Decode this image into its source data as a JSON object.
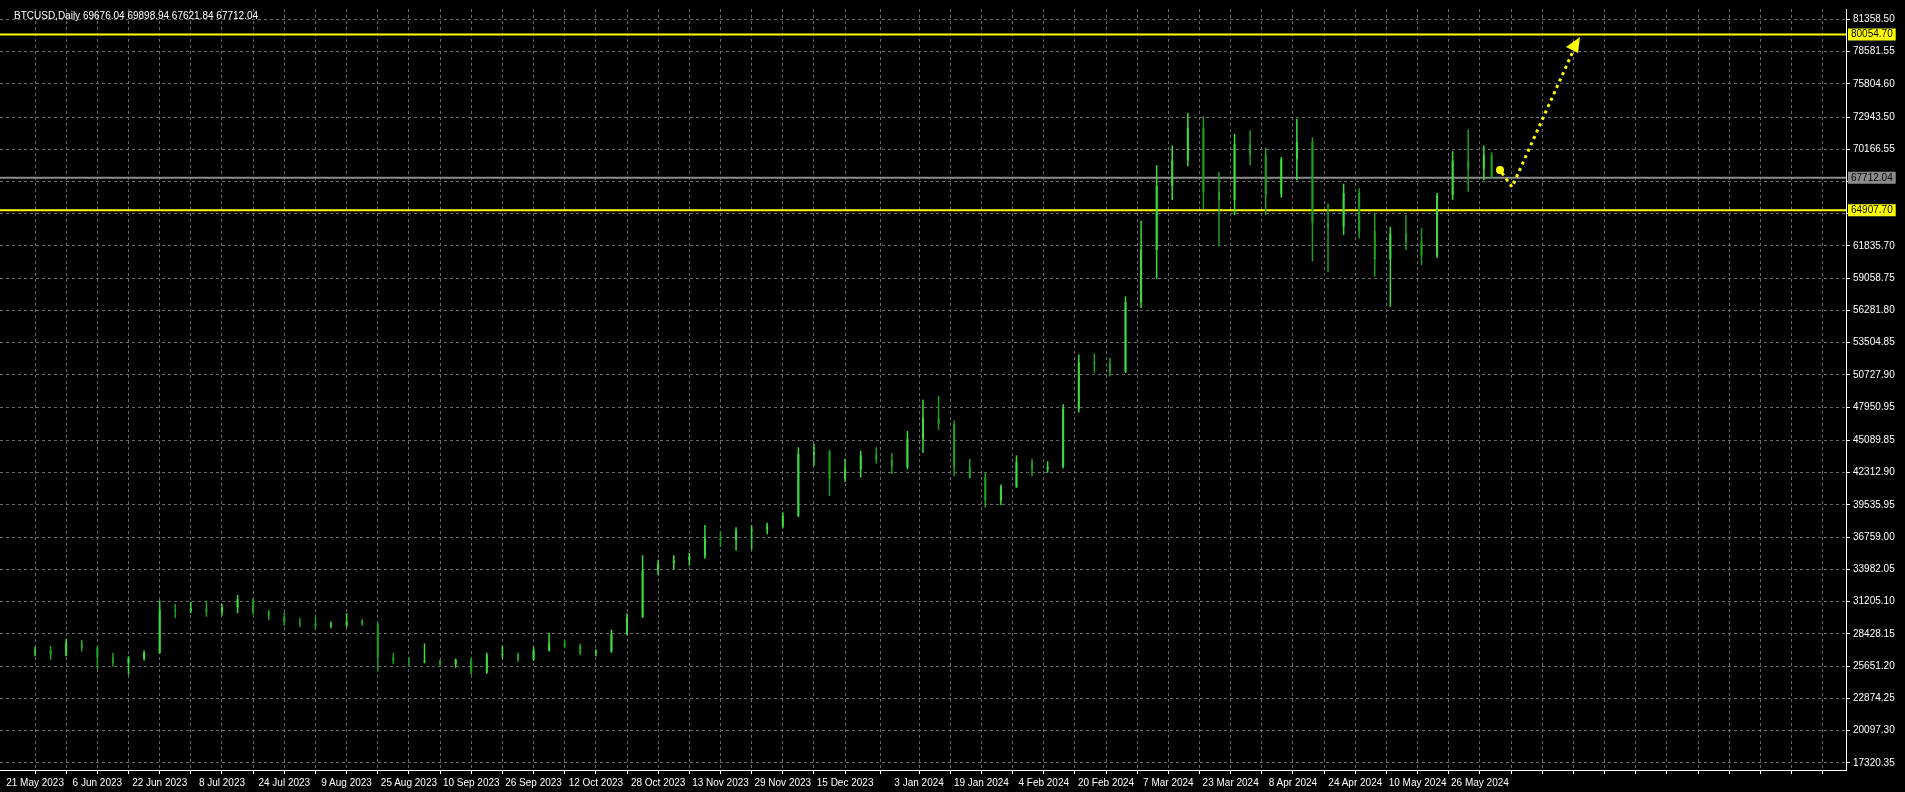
{
  "chart_data": {
    "type": "candlestick",
    "title": "BTCUSD,Daily 69676.04 69898.94 67621.84 67712.04",
    "colors": [
      "#3ddc3d",
      "#1f9e1f",
      "#3ddc3d",
      "#1f9e1f",
      "#1f9e1f",
      "#1f9e1f",
      "#3ddc3d",
      "#3ddc3d",
      "#3ddc3d",
      "#1f9e1f",
      "#3ddc3d",
      "#1f9e1f",
      "#3ddc3d",
      "#3ddc3d",
      "#1f9e1f",
      "#1f9e1f",
      "#1f9e1f",
      "#1f9e1f",
      "#1f9e1f",
      "#3ddc3d",
      "#3ddc3d",
      "#1f9e1f",
      "#1f9e1f",
      "#1f9e1f",
      "#1f9e1f",
      "#3ddc3d",
      "#1f9e1f",
      "#3ddc3d",
      "#1f9e1f",
      "#3ddc3d",
      "#3ddc3d",
      "#1f9e1f",
      "#3ddc3d",
      "#3ddc3d",
      "#1f9e1f",
      "#1f9e1f",
      "#3ddc3d",
      "#3ddc3d",
      "#3ddc3d",
      "#3ddc3d",
      "#3ddc3d",
      "#3ddc3d",
      "#3ddc3d",
      "#3ddc3d",
      "#1f9e1f",
      "#3ddc3d",
      "#3ddc3d",
      "#3ddc3d",
      "#3ddc3d",
      "#3ddc3d",
      "#3ddc3d",
      "#1f9e1f",
      "#3ddc3d",
      "#3ddc3d",
      "#1f9e1f",
      "#1f9e1f",
      "#3ddc3d",
      "#3ddc3d",
      "#1f9e1f",
      "#1f9e1f",
      "#1f9e1f",
      "#1f9e1f",
      "#3ddc3d",
      "#3ddc3d",
      "#1f9e1f",
      "#3ddc3d",
      "#3ddc3d",
      "#3ddc3d",
      "#1f9e1f",
      "#1f9e1f",
      "#3ddc3d",
      "#3ddc3d",
      "#3ddc3d",
      "#3ddc3d",
      "#3ddc3d",
      "#1f9e1f",
      "#1f9e1f",
      "#3ddc3d",
      "#1f9e1f",
      "#1f9e1f",
      "#3ddc3d",
      "#3ddc3d",
      "#1f9e1f",
      "#1f9e1f",
      "#3ddc3d",
      "#1f9e1f",
      "#1f9e1f",
      "#3ddc3d",
      "#1f9e1f",
      "#1f9e1f",
      "#3ddc3d",
      "#3ddc3d",
      "#1f9e1f",
      "#3ddc3d",
      "#1f9e1f"
    ],
    "x": [
      "2023-05-21",
      "2023-05-25",
      "2023-05-29",
      "2023-06-02",
      "2023-06-06",
      "2023-06-10",
      "2023-06-14",
      "2023-06-18",
      "2023-06-22",
      "2023-06-26",
      "2023-06-30",
      "2023-07-04",
      "2023-07-08",
      "2023-07-12",
      "2023-07-16",
      "2023-07-20",
      "2023-07-24",
      "2023-07-28",
      "2023-08-01",
      "2023-08-05",
      "2023-08-09",
      "2023-08-13",
      "2023-08-17",
      "2023-08-21",
      "2023-08-25",
      "2023-08-29",
      "2023-09-02",
      "2023-09-06",
      "2023-09-10",
      "2023-09-14",
      "2023-09-18",
      "2023-09-22",
      "2023-09-26",
      "2023-09-30",
      "2023-10-04",
      "2023-10-08",
      "2023-10-12",
      "2023-10-16",
      "2023-10-20",
      "2023-10-24",
      "2023-10-28",
      "2023-11-01",
      "2023-11-05",
      "2023-11-09",
      "2023-11-13",
      "2023-11-17",
      "2023-11-21",
      "2023-11-25",
      "2023-11-29",
      "2023-12-03",
      "2023-12-07",
      "2023-12-11",
      "2023-12-15",
      "2023-12-19",
      "2023-12-23",
      "2023-12-27",
      "2023-12-31",
      "2024-01-04",
      "2024-01-08",
      "2024-01-12",
      "2024-01-16",
      "2024-01-20",
      "2024-01-24",
      "2024-01-28",
      "2024-02-01",
      "2024-02-05",
      "2024-02-09",
      "2024-02-13",
      "2024-02-17",
      "2024-02-21",
      "2024-02-25",
      "2024-02-29",
      "2024-03-04",
      "2024-03-08",
      "2024-03-12",
      "2024-03-16",
      "2024-03-20",
      "2024-03-24",
      "2024-03-28",
      "2024-04-01",
      "2024-04-05",
      "2024-04-09",
      "2024-04-13",
      "2024-04-17",
      "2024-04-21",
      "2024-04-25",
      "2024-04-29",
      "2024-05-03",
      "2024-05-07",
      "2024-05-11",
      "2024-05-15",
      "2024-05-19",
      "2024-05-23",
      "2024-05-27",
      "2024-05-29"
    ],
    "ohlc": [
      [
        26900,
        27300,
        26500,
        27000
      ],
      [
        27000,
        27400,
        26200,
        26600
      ],
      [
        26600,
        28000,
        26500,
        27700
      ],
      [
        27700,
        27900,
        26900,
        27200
      ],
      [
        27200,
        27400,
        25400,
        26400
      ],
      [
        26400,
        26800,
        25600,
        25900
      ],
      [
        25900,
        26500,
        24900,
        26300
      ],
      [
        26300,
        27000,
        26100,
        26800
      ],
      [
        26800,
        31300,
        26700,
        30500
      ],
      [
        30500,
        31000,
        29800,
        30400
      ],
      [
        30400,
        31200,
        30200,
        30600
      ],
      [
        30600,
        31300,
        29900,
        30300
      ],
      [
        30300,
        31000,
        30000,
        30700
      ],
      [
        30700,
        31800,
        30200,
        31400
      ],
      [
        31400,
        31500,
        30100,
        30300
      ],
      [
        30300,
        30500,
        29600,
        29900
      ],
      [
        29900,
        30300,
        29100,
        29400
      ],
      [
        29400,
        29800,
        29000,
        29300
      ],
      [
        29300,
        29900,
        28800,
        29100
      ],
      [
        29100,
        29500,
        28900,
        29200
      ],
      [
        29200,
        30200,
        29000,
        29500
      ],
      [
        29500,
        29700,
        29100,
        29300
      ],
      [
        29300,
        29400,
        25200,
        26400
      ],
      [
        26400,
        26800,
        25800,
        26100
      ],
      [
        26100,
        26400,
        25700,
        26000
      ],
      [
        26000,
        27600,
        25900,
        26100
      ],
      [
        26100,
        26200,
        25600,
        25800
      ],
      [
        25800,
        26300,
        25500,
        26200
      ],
      [
        26200,
        26400,
        24900,
        25100
      ],
      [
        25100,
        26800,
        25000,
        26600
      ],
      [
        26600,
        27400,
        26300,
        26700
      ],
      [
        26700,
        26800,
        26000,
        26200
      ],
      [
        26200,
        27300,
        26100,
        27000
      ],
      [
        27000,
        28500,
        26900,
        27600
      ],
      [
        27600,
        27900,
        27200,
        27400
      ],
      [
        27400,
        27600,
        26600,
        26800
      ],
      [
        26800,
        27100,
        26500,
        26900
      ],
      [
        26900,
        28800,
        26800,
        28400
      ],
      [
        28400,
        30200,
        28300,
        29900
      ],
      [
        29900,
        35200,
        29800,
        33900
      ],
      [
        33900,
        34800,
        33500,
        34500
      ],
      [
        34500,
        35200,
        34000,
        34800
      ],
      [
        34800,
        35400,
        34300,
        35100
      ],
      [
        35100,
        37800,
        34900,
        36700
      ],
      [
        36700,
        37300,
        35900,
        36500
      ],
      [
        36500,
        37600,
        35600,
        37300
      ],
      [
        37300,
        37800,
        35700,
        37400
      ],
      [
        37400,
        38000,
        37000,
        37700
      ],
      [
        37700,
        38900,
        37500,
        38600
      ],
      [
        38600,
        44500,
        38500,
        43900
      ],
      [
        43900,
        44800,
        42900,
        44100
      ],
      [
        44100,
        44300,
        40300,
        41800
      ],
      [
        41800,
        43500,
        41500,
        42600
      ],
      [
        42600,
        44200,
        41900,
        43800
      ],
      [
        43800,
        44500,
        43100,
        43400
      ],
      [
        43400,
        44000,
        42200,
        42800
      ],
      [
        42800,
        45900,
        42600,
        45200
      ],
      [
        45200,
        48600,
        44000,
        47000
      ],
      [
        47000,
        48900,
        46000,
        46500
      ],
      [
        46500,
        46800,
        42000,
        42800
      ],
      [
        42800,
        43500,
        41800,
        41900
      ],
      [
        41900,
        42300,
        39300,
        39900
      ],
      [
        39900,
        41300,
        39500,
        41100
      ],
      [
        41100,
        43800,
        41000,
        43200
      ],
      [
        43200,
        43500,
        42000,
        42600
      ],
      [
        42600,
        43300,
        42300,
        42800
      ],
      [
        42800,
        48200,
        42700,
        47800
      ],
      [
        47800,
        52500,
        47500,
        51800
      ],
      [
        51800,
        52600,
        50900,
        51700
      ],
      [
        51700,
        52200,
        50600,
        51000
      ],
      [
        51000,
        57500,
        50900,
        57000
      ],
      [
        57000,
        64000,
        56500,
        61500
      ],
      [
        61500,
        68800,
        59000,
        67000
      ],
      [
        67000,
        70500,
        65800,
        69200
      ],
      [
        69200,
        73300,
        68700,
        72000
      ],
      [
        72000,
        73000,
        65000,
        66500
      ],
      [
        66500,
        68200,
        61800,
        65800
      ],
      [
        65800,
        71500,
        64500,
        70600
      ],
      [
        70600,
        71800,
        68800,
        69700
      ],
      [
        69700,
        70300,
        64500,
        66300
      ],
      [
        66300,
        69500,
        66000,
        69300
      ],
      [
        69300,
        72800,
        67500,
        70800
      ],
      [
        70800,
        71200,
        60500,
        63800
      ],
      [
        63800,
        65500,
        59600,
        63500
      ],
      [
        63500,
        67200,
        62800,
        66400
      ],
      [
        66400,
        66800,
        62500,
        63100
      ],
      [
        63100,
        64700,
        59200,
        60700
      ],
      [
        60700,
        63500,
        56600,
        62900
      ],
      [
        62900,
        64500,
        61500,
        62200
      ],
      [
        62200,
        63400,
        60200,
        61000
      ],
      [
        61000,
        66400,
        60800,
        66200
      ],
      [
        66200,
        70000,
        65800,
        69200
      ],
      [
        69200,
        71900,
        66500,
        68500
      ],
      [
        68500,
        70500,
        67500,
        69676.04
      ],
      [
        69676.04,
        69898.94,
        67621.84,
        67712.04
      ]
    ],
    "xlim": [
      "2023-05-12",
      "2024-08-28"
    ],
    "xticks": [
      {
        "value": "2023-05-21",
        "label": "21 May 2023"
      },
      {
        "value": "2023-05-29",
        "label": null
      },
      {
        "value": "2023-06-06",
        "label": "6 Jun 2023"
      },
      {
        "value": "2023-06-14",
        "label": null
      },
      {
        "value": "2023-06-22",
        "label": "22 Jun 2023"
      },
      {
        "value": "2023-06-30",
        "label": null
      },
      {
        "value": "2023-07-08",
        "label": "8 Jul 2023"
      },
      {
        "value": "2023-07-16",
        "label": null
      },
      {
        "value": "2023-07-24",
        "label": "24 Jul 2023"
      },
      {
        "value": "2023-08-01",
        "label": null
      },
      {
        "value": "2023-08-09",
        "label": "9 Aug 2023"
      },
      {
        "value": "2023-08-17",
        "label": null
      },
      {
        "value": "2023-08-25",
        "label": "25 Aug 2023"
      },
      {
        "value": "2023-09-02",
        "label": null
      },
      {
        "value": "2023-09-10",
        "label": "10 Sep 2023"
      },
      {
        "value": "2023-09-18",
        "label": null
      },
      {
        "value": "2023-09-26",
        "label": "26 Sep 2023"
      },
      {
        "value": "2023-10-04",
        "label": null
      },
      {
        "value": "2023-10-12",
        "label": "12 Oct 2023"
      },
      {
        "value": "2023-10-20",
        "label": null
      },
      {
        "value": "2023-10-28",
        "label": "28 Oct 2023"
      },
      {
        "value": "2023-11-05",
        "label": null
      },
      {
        "value": "2023-11-13",
        "label": "13 Nov 2023"
      },
      {
        "value": "2023-11-21",
        "label": null
      },
      {
        "value": "2023-11-29",
        "label": "29 Nov 2023"
      },
      {
        "value": "2023-12-07",
        "label": null
      },
      {
        "value": "2023-12-15",
        "label": "15 Dec 2023"
      },
      {
        "value": "2023-12-24",
        "label": null
      },
      {
        "value": "2024-01-03",
        "label": "3 Jan 2024"
      },
      {
        "value": "2024-01-11",
        "label": null
      },
      {
        "value": "2024-01-19",
        "label": "19 Jan 2024"
      },
      {
        "value": "2024-01-27",
        "label": null
      },
      {
        "value": "2024-02-04",
        "label": "4 Feb 2024"
      },
      {
        "value": "2024-02-12",
        "label": null
      },
      {
        "value": "2024-02-20",
        "label": "20 Feb 2024"
      },
      {
        "value": "2024-02-28",
        "label": null
      },
      {
        "value": "2024-03-07",
        "label": "7 Mar 2024"
      },
      {
        "value": "2024-03-15",
        "label": null
      },
      {
        "value": "2024-03-23",
        "label": "23 Mar 2024"
      },
      {
        "value": "2024-03-31",
        "label": null
      },
      {
        "value": "2024-04-08",
        "label": "8 Apr 2024"
      },
      {
        "value": "2024-04-16",
        "label": null
      },
      {
        "value": "2024-04-24",
        "label": "24 Apr 2024"
      },
      {
        "value": "2024-05-02",
        "label": null
      },
      {
        "value": "2024-05-10",
        "label": "10 May 2024"
      },
      {
        "value": "2024-05-18",
        "label": null
      },
      {
        "value": "2024-05-26",
        "label": "26 May 2024"
      },
      {
        "value": "2024-06-03",
        "label": null
      },
      {
        "value": "2024-06-11",
        "label": null
      },
      {
        "value": "2024-06-19",
        "label": null
      },
      {
        "value": "2024-06-27",
        "label": null
      },
      {
        "value": "2024-07-05",
        "label": null
      },
      {
        "value": "2024-07-13",
        "label": null
      },
      {
        "value": "2024-07-21",
        "label": null
      },
      {
        "value": "2024-07-29",
        "label": null
      },
      {
        "value": "2024-08-06",
        "label": null
      },
      {
        "value": "2024-08-14",
        "label": null
      },
      {
        "value": "2024-08-22",
        "label": null
      }
    ],
    "ylim": [
      16700,
      82250
    ],
    "yticks": [
      {
        "value": 17320.35,
        "label": "17320.35"
      },
      {
        "value": 20097.3,
        "label": "20097.30"
      },
      {
        "value": 22874.25,
        "label": "22874.25"
      },
      {
        "value": 25651.2,
        "label": "25651.20"
      },
      {
        "value": 28428.15,
        "label": "28428.15"
      },
      {
        "value": 31205.1,
        "label": "31205.10"
      },
      {
        "value": 33982.05,
        "label": "33982.05"
      },
      {
        "value": 36759,
        "label": "36759.00"
      },
      {
        "value": 39535.95,
        "label": "39535.95"
      },
      {
        "value": 42312.9,
        "label": "42312.90"
      },
      {
        "value": 45089.85,
        "label": "45089.85"
      },
      {
        "value": 47950.95,
        "label": "47950.95"
      },
      {
        "value": 50727.9,
        "label": "50727.90"
      },
      {
        "value": 53504.85,
        "label": "53504.85"
      },
      {
        "value": 56281.8,
        "label": "56281.80"
      },
      {
        "value": 59058.75,
        "label": "59058.75"
      },
      {
        "value": 61835.7,
        "label": "61835.70"
      },
      {
        "value": 64612.65,
        "label": null
      },
      {
        "value": 67389.6,
        "label": null
      },
      {
        "value": 70166.55,
        "label": "70166.55"
      },
      {
        "value": 72943.5,
        "label": "72943.50"
      },
      {
        "value": 75804.6,
        "label": "75804.60"
      },
      {
        "value": 78581.55,
        "label": "78581.55"
      },
      {
        "value": 81358.5,
        "label": "81358.50"
      }
    ],
    "grid": true,
    "ref_lines": [
      {
        "axis": "y",
        "value": 80054.7,
        "label": "80054.70",
        "color": "#ffff00"
      },
      {
        "axis": "y",
        "value": 64907.7,
        "label": "64907.70",
        "color": "#ffff00"
      },
      {
        "axis": "y",
        "value": 67712.04,
        "label": "67712.04",
        "color": "#8c8c8c"
      }
    ]
  }
}
